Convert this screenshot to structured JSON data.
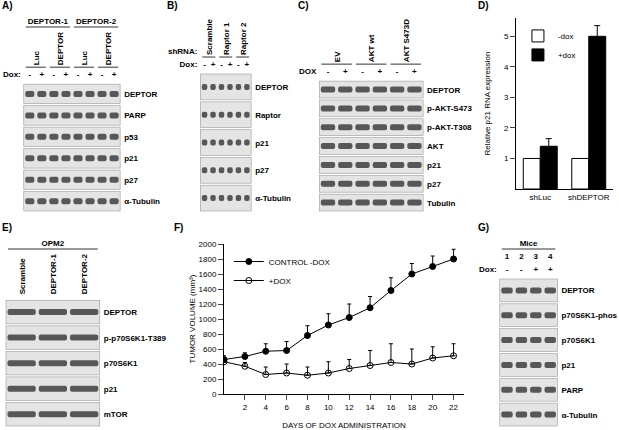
{
  "chart_data": [
    {
      "panel": "D)",
      "type": "bar",
      "categories": [
        "shLuc",
        "shDEPTOR"
      ],
      "series": [
        {
          "name": "-dox",
          "color": "#ffffff",
          "values": [
            1,
            1
          ]
        },
        {
          "name": "+dox",
          "color": "#000000",
          "values": [
            1.4,
            5.0
          ],
          "errors": [
            0.25,
            0.35
          ]
        }
      ],
      "y_label": "Relative p21 RNA expression",
      "ylim": [
        0,
        5.6
      ],
      "yticks": [
        1,
        2,
        3,
        4,
        5
      ],
      "grid": false,
      "legend": "top left"
    },
    {
      "panel": "F)",
      "type": "line",
      "x": [
        0,
        2,
        4,
        6,
        8,
        10,
        12,
        14,
        16,
        18,
        20,
        22
      ],
      "series": [
        {
          "name": "CONTROL -DOX",
          "color": "#000000",
          "marker": "circle",
          "values": [
            460,
            500,
            570,
            580,
            780,
            920,
            1020,
            1150,
            1380,
            1600,
            1700,
            1800
          ],
          "errors": [
            50,
            50,
            100,
            120,
            130,
            150,
            180,
            150,
            170,
            140,
            140,
            130
          ]
        },
        {
          "name": "+DOX",
          "color": "#000000",
          "marker": "circle-open",
          "values": [
            430,
            370,
            260,
            280,
            250,
            280,
            340,
            380,
            420,
            400,
            480,
            510
          ],
          "errors": [
            40,
            50,
            100,
            120,
            110,
            150,
            120,
            200,
            250,
            200,
            150,
            160
          ]
        }
      ],
      "x_label": "DAYS OF DOX ADMINISTRATION",
      "y_label": "TUMOR VOLUME (mm³)",
      "xlim": [
        0,
        23
      ],
      "xticks": [
        2,
        4,
        6,
        8,
        10,
        12,
        14,
        16,
        18,
        20,
        22
      ],
      "ylim": [
        0,
        2000
      ],
      "yticks": [
        0,
        200,
        400,
        600,
        800,
        1000,
        1200,
        1400,
        1600,
        1800,
        2000
      ],
      "grid": false,
      "legend": "top left"
    }
  ],
  "blots": [
    {
      "panel": "A)",
      "header_rows": [
        {
          "cells": [
            {
              "text": "DEPTOR-1",
              "span": 4
            },
            {
              "text": "DEPTOR-2",
              "span": 4
            }
          ]
        },
        {
          "cells": [
            {
              "text": "Luc",
              "span": 2
            },
            {
              "text": "DEPTOR",
              "span": 2
            },
            {
              "text": "Luc",
              "span": 2
            },
            {
              "text": "DEPTOR",
              "span": 2
            }
          ]
        },
        {
          "title": "Dox:",
          "cells": [
            {
              "text": "-",
              "span": 1
            },
            {
              "text": "+",
              "span": 1
            },
            {
              "text": "-",
              "span": 1
            },
            {
              "text": "+",
              "span": 1
            },
            {
              "text": "-",
              "span": 1
            },
            {
              "text": "+",
              "span": 1
            },
            {
              "text": "-",
              "span": 1
            },
            {
              "text": "+",
              "span": 1
            }
          ]
        }
      ],
      "bands": [
        "DEPTOR",
        "PARP",
        "p53",
        "p21",
        "p27",
        "α-Tubulin"
      ]
    },
    {
      "panel": "B)",
      "header_rows": [
        {
          "title": "shRNA:",
          "cells": [
            {
              "text": "Scramble",
              "span": 2
            },
            {
              "text": "Raptor 1",
              "span": 2
            },
            {
              "text": "Raptor 2",
              "span": 2
            }
          ]
        },
        {
          "title": "Dox:",
          "cells": [
            {
              "text": "-",
              "span": 1
            },
            {
              "text": "+",
              "span": 1
            },
            {
              "text": "-",
              "span": 1
            },
            {
              "text": "+",
              "span": 1
            },
            {
              "text": "-",
              "span": 1
            },
            {
              "text": "+",
              "span": 1
            }
          ]
        }
      ],
      "bands": [
        "DEPTOR",
        "Raptor",
        "p21",
        "p27",
        "α-Tubulin"
      ]
    },
    {
      "panel": "C)",
      "header_rows": [
        {
          "cells": [
            {
              "text": "EV",
              "span": 2
            },
            {
              "text": "AKT wt",
              "span": 2
            },
            {
              "text": "AKT S473D",
              "span": 2
            }
          ]
        },
        {
          "title": "DOX",
          "cells": [
            {
              "text": "-",
              "span": 1
            },
            {
              "text": "+",
              "span": 1
            },
            {
              "text": "-",
              "span": 1
            },
            {
              "text": "+",
              "span": 1
            },
            {
              "text": "-",
              "span": 1
            },
            {
              "text": "+",
              "span": 1
            }
          ]
        }
      ],
      "bands": [
        "DEPTOR",
        "p-AKT-S473",
        "p-AKT-T308",
        "AKT",
        "p21",
        "p27",
        "Tubulin"
      ]
    },
    {
      "panel": "E)",
      "header_rows": [
        {
          "cells": [
            {
              "text": "OPM2",
              "span": 3
            }
          ]
        },
        {
          "cells": [
            {
              "text": "Scramble",
              "span": 1
            },
            {
              "text": "DEPTOR-1",
              "span": 1
            },
            {
              "text": "DEPTOR-2",
              "span": 1
            }
          ]
        }
      ],
      "bands": [
        "DEPTOR",
        "p-p70S6K1-T389",
        "p70S6K1",
        "p21",
        "mTOR"
      ]
    },
    {
      "panel": "G)",
      "header_rows": [
        {
          "cells": [
            {
              "text": "Mice",
              "span": 4
            }
          ]
        },
        {
          "cells": [
            {
              "text": "1",
              "span": 1
            },
            {
              "text": "2",
              "span": 1
            },
            {
              "text": "3",
              "span": 1
            },
            {
              "text": "4",
              "span": 1
            }
          ]
        },
        {
          "title": "Dox:",
          "cells": [
            {
              "text": "-",
              "span": 1
            },
            {
              "text": "-",
              "span": 1
            },
            {
              "text": "+",
              "span": 1
            },
            {
              "text": "+",
              "span": 1
            }
          ]
        }
      ],
      "bands": [
        "DEPTOR",
        "p70S6K1-phos",
        "p70S6K1",
        "p21",
        "PARP",
        "α-Tubulin"
      ]
    }
  ]
}
